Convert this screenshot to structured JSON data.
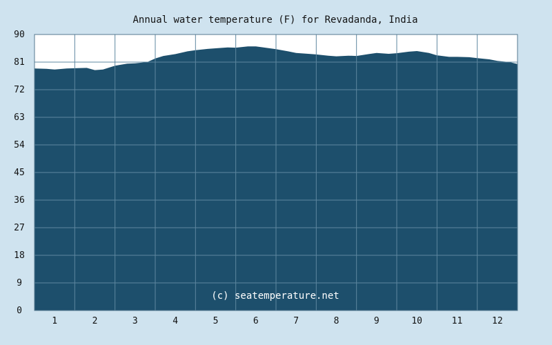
{
  "chart_data": {
    "type": "area",
    "title": "Annual water temperature (F) for Revadanda, India",
    "watermark": "(c) seatemperature.net",
    "xlabel": "",
    "ylabel": "",
    "ylim": [
      0,
      90
    ],
    "yticks": [
      "0",
      "9",
      "18",
      "27",
      "36",
      "45",
      "54",
      "63",
      "72",
      "81",
      "90"
    ],
    "xlim": [
      0.5,
      12.5
    ],
    "xticks": [
      "1",
      "2",
      "3",
      "4",
      "5",
      "6",
      "7",
      "8",
      "9",
      "10",
      "11",
      "12"
    ],
    "grid": true,
    "legend": "none",
    "series": [
      {
        "x": [
          0.5,
          0.8,
          1.0,
          1.3,
          1.5,
          1.8,
          2.0,
          2.2,
          2.5,
          2.8,
          3.0,
          3.3,
          3.5,
          3.7,
          4.0,
          4.3,
          4.5,
          4.8,
          5.0,
          5.3,
          5.5,
          5.8,
          6.0,
          6.3,
          6.5,
          6.8,
          7.0,
          7.3,
          7.5,
          7.8,
          8.0,
          8.3,
          8.5,
          8.8,
          9.0,
          9.3,
          9.5,
          9.8,
          10.0,
          10.3,
          10.5,
          10.8,
          11.0,
          11.3,
          11.5,
          11.8,
          12.0,
          12.3,
          12.5
        ],
        "y": [
          78.9,
          78.8,
          78.6,
          78.9,
          79.0,
          79.1,
          78.4,
          78.6,
          79.8,
          80.5,
          80.6,
          81.0,
          82.2,
          83.0,
          83.6,
          84.5,
          84.9,
          85.3,
          85.5,
          85.8,
          85.7,
          86.1,
          86.1,
          85.6,
          85.2,
          84.5,
          84.0,
          83.7,
          83.5,
          83.1,
          82.9,
          83.1,
          83.0,
          83.6,
          84.0,
          83.7,
          83.9,
          84.4,
          84.6,
          84.0,
          83.2,
          82.7,
          82.7,
          82.6,
          82.3,
          81.9,
          81.4,
          81.0,
          80.4
        ]
      }
    ],
    "colors": {
      "background": "#cfe3ef",
      "area_fill": "#1d4f6c",
      "plot_background": "#ffffff",
      "grid": "#5e87a0",
      "border": "#56788f"
    }
  }
}
